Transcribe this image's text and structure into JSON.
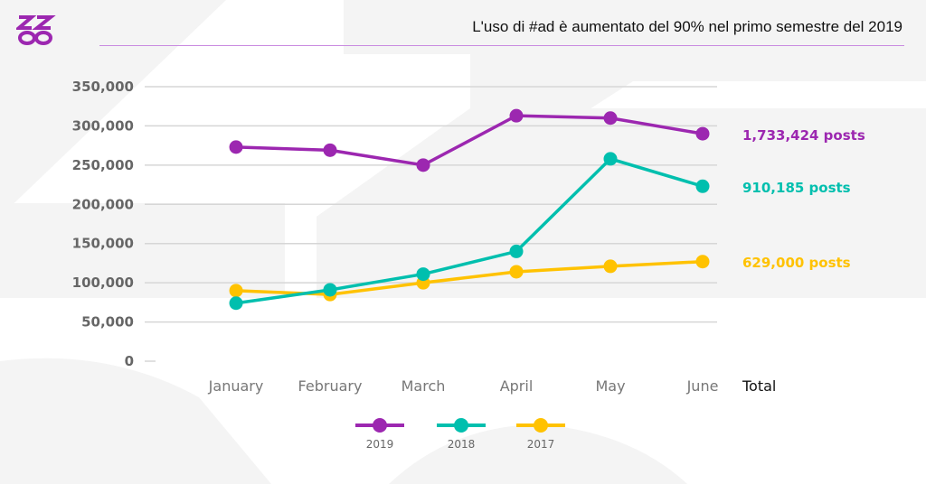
{
  "header": {
    "title": "L'uso di #ad è aumentato del 90% nel primo semestre del 2019",
    "logo_text": "ZZ∞"
  },
  "colors": {
    "2019": "#9c27b0",
    "2018": "#00bfae",
    "2017": "#ffc200",
    "background_shape": "#f4f4f4",
    "rule": "#c98be0"
  },
  "chart_data": {
    "type": "line",
    "categories": [
      "January",
      "February",
      "March",
      "April",
      "May",
      "June"
    ],
    "extra_x_label": "Total",
    "y_ticks": [
      "0",
      "50,000",
      "100,000",
      "150,000",
      "200,000",
      "250,000",
      "300,000",
      "350,000"
    ],
    "ylim": [
      0,
      350000
    ],
    "grid": true,
    "legend_position": "bottom",
    "series": [
      {
        "name": "2019",
        "color": "#9c27b0",
        "values": [
          273000,
          269000,
          250000,
          313000,
          310000,
          290000
        ],
        "total_label": "1,733,424 posts"
      },
      {
        "name": "2018",
        "color": "#00bfae",
        "values": [
          74000,
          91000,
          111000,
          140000,
          258000,
          223000
        ],
        "total_label": "910,185 posts"
      },
      {
        "name": "2017",
        "color": "#ffc200",
        "values": [
          90000,
          85000,
          100000,
          114000,
          121000,
          127000
        ],
        "total_label": "629,000 posts"
      }
    ]
  }
}
